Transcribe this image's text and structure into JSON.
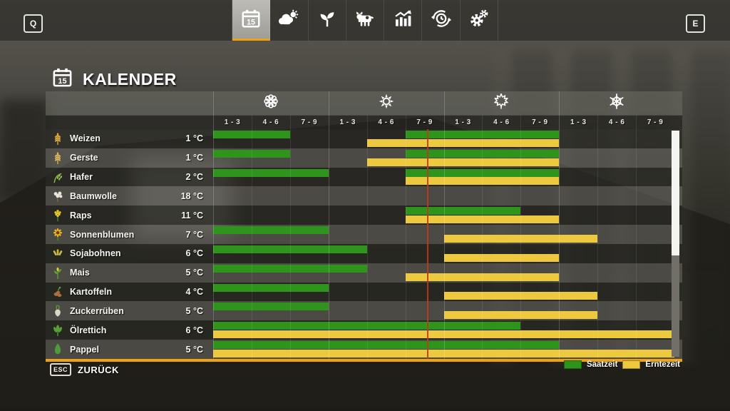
{
  "colors": {
    "accent": "#f0a312",
    "sow": "#2f941c",
    "harvest": "#edc93f",
    "current_line": "#c03a1a"
  },
  "topbar": {
    "left_key": "Q",
    "right_key": "E",
    "tabs": [
      {
        "icon": "calendar-icon",
        "badge": "15",
        "active": true
      },
      {
        "icon": "weather-icon",
        "active": false
      },
      {
        "icon": "sprout-icon",
        "active": false
      },
      {
        "icon": "cow-icon",
        "active": false
      },
      {
        "icon": "stats-icon",
        "active": false
      },
      {
        "icon": "cycle-clock-icon",
        "active": false
      },
      {
        "icon": "settings-gears-icon",
        "active": false
      }
    ]
  },
  "header": {
    "title": "KALENDER",
    "icon": "calendar-icon",
    "icon_badge": "15"
  },
  "calendar": {
    "seasons": [
      {
        "name": "spring",
        "icon": "flower-icon"
      },
      {
        "name": "summer",
        "icon": "sun-icon"
      },
      {
        "name": "autumn",
        "icon": "leaf-icon"
      },
      {
        "name": "winter",
        "icon": "snowflake-icon"
      }
    ],
    "period_labels": [
      "1 - 3",
      "4 - 6",
      "7 - 9",
      "1 - 3",
      "4 - 6",
      "7 - 9",
      "1 - 3",
      "4 - 6",
      "7 - 9",
      "1 - 3",
      "4 - 6",
      "7 - 9"
    ],
    "columns_total": 12,
    "current_marker_pct": 46.4,
    "crops": [
      {
        "name": "Weizen",
        "temp": "1 °C",
        "icon": "wheat-icon",
        "icon_color": "#dcaa3c",
        "sow": [
          [
            1,
            2
          ],
          [
            6,
            9
          ]
        ],
        "harvest": [
          [
            5,
            9
          ]
        ]
      },
      {
        "name": "Gerste",
        "temp": "1 °C",
        "icon": "barley-icon",
        "icon_color": "#d9b45a",
        "sow": [
          [
            1,
            2
          ],
          [
            6,
            9
          ]
        ],
        "harvest": [
          [
            5,
            9
          ]
        ]
      },
      {
        "name": "Hafer",
        "temp": "2 °C",
        "icon": "oat-icon",
        "icon_color": "#8fbf52",
        "sow": [
          [
            1,
            3
          ],
          [
            6,
            9
          ]
        ],
        "harvest": [
          [
            6,
            9
          ]
        ]
      },
      {
        "name": "Baumwolle",
        "temp": "18 °C",
        "icon": "cotton-icon",
        "icon_color": "#e9e5da",
        "sow": [],
        "harvest": []
      },
      {
        "name": "Raps",
        "temp": "11 °C",
        "icon": "canola-icon",
        "icon_color": "#e6c42e",
        "sow": [
          [
            6,
            8
          ]
        ],
        "harvest": [
          [
            6,
            9
          ]
        ]
      },
      {
        "name": "Sonnenblumen",
        "temp": "7 °C",
        "icon": "sunflower-icon",
        "icon_color": "#f2b822",
        "sow": [
          [
            1,
            3
          ]
        ],
        "harvest": [
          [
            7,
            10
          ]
        ]
      },
      {
        "name": "Sojabohnen",
        "temp": "6 °C",
        "icon": "soybean-icon",
        "icon_color": "#cdb83f",
        "sow": [
          [
            1,
            4
          ]
        ],
        "harvest": [
          [
            7,
            9
          ]
        ]
      },
      {
        "name": "Mais",
        "temp": "5 °C",
        "icon": "maize-icon",
        "icon_color": "#5d9c36",
        "sow": [
          [
            1,
            4
          ]
        ],
        "harvest": [
          [
            6,
            9
          ]
        ]
      },
      {
        "name": "Kartoffeln",
        "temp": "4 °C",
        "icon": "potato-icon",
        "icon_color": "#a8713e",
        "sow": [
          [
            1,
            3
          ]
        ],
        "harvest": [
          [
            7,
            10
          ]
        ]
      },
      {
        "name": "Zuckerrüben",
        "temp": "5 °C",
        "icon": "sugarbeet-icon",
        "icon_color": "#d9d9c9",
        "sow": [
          [
            1,
            3
          ]
        ],
        "harvest": [
          [
            7,
            10
          ]
        ]
      },
      {
        "name": "Ölrettich",
        "temp": "6 °C",
        "icon": "oilseed-radish-icon",
        "icon_color": "#58a035",
        "sow": [
          [
            1,
            8
          ]
        ],
        "harvest": [
          [
            1,
            12
          ]
        ]
      },
      {
        "name": "Pappel",
        "temp": "5 °C",
        "icon": "poplar-icon",
        "icon_color": "#4d9a3b",
        "sow": [
          [
            1,
            9
          ]
        ],
        "harvest": [
          [
            1,
            12
          ]
        ]
      }
    ],
    "legend": [
      {
        "label": "Saatzeit",
        "color": "#2f941c"
      },
      {
        "label": "Erntezeit",
        "color": "#edc93f"
      }
    ]
  },
  "footer": {
    "key": "ESC",
    "label": "ZURÜCK"
  }
}
